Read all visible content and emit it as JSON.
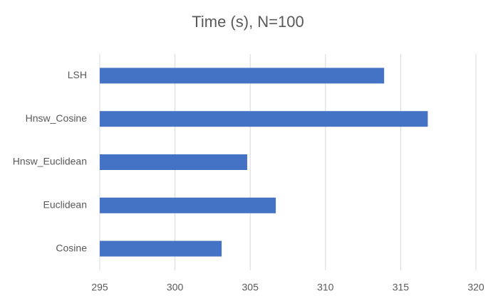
{
  "chart_data": {
    "type": "bar",
    "orientation": "horizontal",
    "title": "Time (s), N=100",
    "categories": [
      "LSH",
      "Hnsw_Cosine",
      "Hnsw_Euclidean",
      "Euclidean",
      "Cosine"
    ],
    "values": [
      313.9,
      316.8,
      304.8,
      306.7,
      303.1
    ],
    "color": "#4472c4",
    "xlim": [
      295,
      320
    ],
    "xticks": [
      295,
      300,
      305,
      310,
      315,
      320
    ],
    "grid": true
  }
}
